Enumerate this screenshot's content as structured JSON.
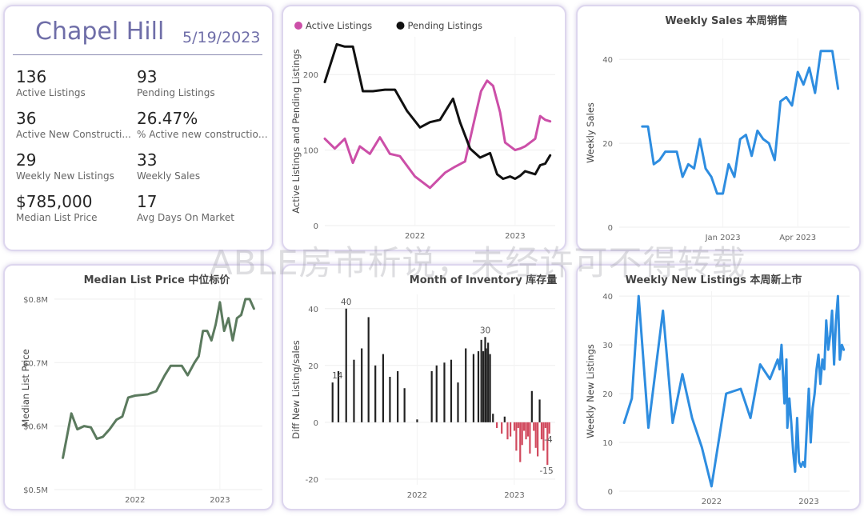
{
  "kpi_card": {
    "city": "Chapel Hill",
    "date": "5/19/2023",
    "items": [
      {
        "value": "136",
        "label": "Active Listings"
      },
      {
        "value": "93",
        "label": "Pending Listings"
      },
      {
        "value": "36",
        "label": "Active New Constructi..."
      },
      {
        "value": "26.47%",
        "label": "% Active new constructions"
      },
      {
        "value": "29",
        "label": "Weekly New Listings"
      },
      {
        "value": "33",
        "label": "Weekly Sales"
      },
      {
        "value": "$785,000",
        "label": "Median List Price"
      },
      {
        "value": "17",
        "label": "Avg Days On Market"
      }
    ]
  },
  "watermark": "ABLE房市析说，未经许可不得转载",
  "chart_data": [
    {
      "id": "listings",
      "type": "line",
      "title": "",
      "ylabel": "Active Listings and Pending Listings",
      "ylim": [
        0,
        250
      ],
      "yticks": [
        "0",
        "100",
        "200"
      ],
      "xticks": [
        {
          "label": "2022",
          "x": 2022.0
        },
        {
          "label": "2023",
          "x": 2023.0
        }
      ],
      "xlim": [
        2021.1,
        2023.4
      ],
      "legend": "top-left",
      "series": [
        {
          "name": "Active Listings",
          "color": "#cc4fa8",
          "x": [
            2021.1,
            2021.2,
            2021.3,
            2021.38,
            2021.45,
            2021.55,
            2021.65,
            2021.75,
            2021.85,
            2022.0,
            2022.15,
            2022.3,
            2022.4,
            2022.5,
            2022.58,
            2022.66,
            2022.72,
            2022.78,
            2022.85,
            2022.9,
            2022.95,
            2023.0,
            2023.05,
            2023.1,
            2023.15,
            2023.2,
            2023.25,
            2023.3,
            2023.35
          ],
          "values": [
            115,
            102,
            115,
            83,
            105,
            95,
            117,
            95,
            92,
            65,
            50,
            70,
            78,
            85,
            132,
            178,
            192,
            185,
            150,
            110,
            105,
            100,
            102,
            105,
            110,
            115,
            145,
            140,
            138
          ]
        },
        {
          "name": "Pending Listings",
          "color": "#111111",
          "x": [
            2021.1,
            2021.22,
            2021.3,
            2021.38,
            2021.48,
            2021.58,
            2021.7,
            2021.8,
            2021.92,
            2022.05,
            2022.15,
            2022.25,
            2022.38,
            2022.45,
            2022.55,
            2022.65,
            2022.75,
            2022.82,
            2022.88,
            2022.95,
            2023.0,
            2023.05,
            2023.1,
            2023.15,
            2023.2,
            2023.25,
            2023.3,
            2023.35
          ],
          "values": [
            190,
            240,
            237,
            237,
            178,
            178,
            180,
            180,
            152,
            130,
            137,
            140,
            168,
            137,
            102,
            90,
            96,
            68,
            62,
            65,
            62,
            66,
            72,
            70,
            68,
            80,
            82,
            93
          ]
        }
      ]
    },
    {
      "id": "weekly_sales",
      "type": "line",
      "title": "Weekly Sales 本周销售",
      "ylabel": "Weekly Sales",
      "ylim": [
        0,
        45
      ],
      "yticks": [
        "0",
        "20",
        "40"
      ],
      "xticks": [
        {
          "label": "Jan 2023",
          "x": 0
        },
        {
          "label": "Apr 2023",
          "x": 13
        }
      ],
      "series": [
        {
          "name": "",
          "color": "#2e8de0",
          "x": [
            -14,
            -13,
            -12,
            -11,
            -10,
            -9,
            -8,
            -7,
            -6,
            -5,
            -4,
            -3,
            -2,
            -1,
            0,
            1,
            2,
            3,
            4,
            5,
            6,
            7,
            8,
            9,
            10,
            11,
            12,
            13,
            14,
            15,
            16,
            17,
            18,
            19,
            20
          ],
          "values": [
            24,
            24,
            15,
            16,
            18,
            18,
            18,
            12,
            15,
            14,
            21,
            14,
            12,
            8,
            8,
            15,
            12,
            21,
            22,
            17,
            23,
            21,
            20,
            16,
            30,
            31,
            29,
            37,
            34,
            38,
            32,
            42,
            42,
            42,
            33
          ]
        }
      ]
    },
    {
      "id": "median_price",
      "type": "line",
      "title": "Median List Price  中位标价",
      "ylabel": "Median List Price",
      "ylim": [
        0.5,
        0.82
      ],
      "yticks": [
        "$0.5M",
        "$0.6M",
        "$0.7M",
        "$0.8M"
      ],
      "xticks": [
        {
          "label": "2022",
          "x": 2022.0
        },
        {
          "label": "2023",
          "x": 2023.0
        }
      ],
      "series": [
        {
          "name": "",
          "color": "#5b7a5e",
          "x": [
            2021.15,
            2021.25,
            2021.32,
            2021.4,
            2021.48,
            2021.55,
            2021.62,
            2021.7,
            2021.78,
            2021.85,
            2021.92,
            2022.0,
            2022.15,
            2022.25,
            2022.35,
            2022.42,
            2022.48,
            2022.55,
            2022.62,
            2022.7,
            2022.75,
            2022.8,
            2022.85,
            2022.9,
            2022.95,
            2023.0,
            2023.05,
            2023.1,
            2023.15,
            2023.2,
            2023.25,
            2023.3,
            2023.35,
            2023.4
          ],
          "values": [
            0.55,
            0.62,
            0.595,
            0.6,
            0.598,
            0.58,
            0.583,
            0.595,
            0.61,
            0.615,
            0.645,
            0.648,
            0.65,
            0.655,
            0.68,
            0.695,
            0.695,
            0.695,
            0.68,
            0.7,
            0.71,
            0.75,
            0.75,
            0.735,
            0.76,
            0.795,
            0.75,
            0.77,
            0.735,
            0.77,
            0.775,
            0.8,
            0.8,
            0.785
          ]
        }
      ]
    },
    {
      "id": "months_inventory",
      "type": "bar",
      "title": "Month of Inventory 库存量",
      "ylabel": "Diff New Listing/sales",
      "ylim": [
        -22,
        45
      ],
      "yticks": [
        "-20",
        "0",
        "20",
        "40"
      ],
      "xticks": [
        {
          "label": "2022",
          "x": 2022.0
        },
        {
          "label": "2023",
          "x": 2023.0
        }
      ],
      "annotations": [
        {
          "label": "40",
          "x": 2021.27,
          "y": 40
        },
        {
          "label": "14",
          "x": 2021.18,
          "y": 14
        },
        {
          "label": "30",
          "x": 2022.7,
          "y": 30
        },
        {
          "label": "-4",
          "x": 2023.35,
          "y": -4
        },
        {
          "label": "-15",
          "x": 2023.33,
          "y": -15
        }
      ],
      "x": [
        2021.13,
        2021.19,
        2021.27,
        2021.35,
        2021.43,
        2021.5,
        2021.57,
        2021.65,
        2021.72,
        2021.8,
        2021.87,
        2022.0,
        2022.15,
        2022.2,
        2022.28,
        2022.35,
        2022.42,
        2022.5,
        2022.58,
        2022.63,
        2022.66,
        2022.68,
        2022.7,
        2022.71,
        2022.73,
        2022.75,
        2022.78,
        2022.82,
        2022.87,
        2022.9,
        2022.93,
        2022.96,
        2023.0,
        2023.02,
        2023.04,
        2023.06,
        2023.08,
        2023.1,
        2023.12,
        2023.14,
        2023.16,
        2023.18,
        2023.2,
        2023.22,
        2023.24,
        2023.26,
        2023.28,
        2023.3,
        2023.32,
        2023.34,
        2023.36
      ],
      "values": [
        14,
        18,
        40,
        22,
        26,
        37,
        20,
        24,
        16,
        18,
        12,
        1,
        18,
        20,
        21,
        22,
        14,
        26,
        24,
        25,
        29,
        25,
        30,
        26,
        28,
        24,
        3,
        -2,
        -4,
        2,
        -6,
        -5,
        -3,
        -10,
        -2,
        -14,
        -8,
        -3,
        -6,
        -5,
        -11,
        11,
        -3,
        -9,
        -12,
        8,
        -6,
        -10,
        -2,
        -15,
        -4
      ]
    },
    {
      "id": "weekly_new_listings",
      "type": "line",
      "title": "Weekly New Listings  本周新上市",
      "ylabel": "Weekly New Listings",
      "ylim": [
        0,
        41
      ],
      "yticks": [
        "0",
        "10",
        "20",
        "30",
        "40"
      ],
      "xticks": [
        {
          "label": "2022",
          "x": 2022.0
        },
        {
          "label": "2023",
          "x": 2023.0
        }
      ],
      "series": [
        {
          "name": "",
          "color": "#2e8de0",
          "x": [
            2021.1,
            2021.18,
            2021.25,
            2021.35,
            2021.5,
            2021.6,
            2021.7,
            2021.8,
            2021.9,
            2022.0,
            2022.15,
            2022.3,
            2022.4,
            2022.5,
            2022.6,
            2022.68,
            2022.7,
            2022.72,
            2022.75,
            2022.77,
            2022.78,
            2022.8,
            2022.82,
            2022.84,
            2022.86,
            2022.88,
            2022.9,
            2022.92,
            2022.94,
            2022.96,
            2023.0,
            2023.02,
            2023.04,
            2023.06,
            2023.08,
            2023.1,
            2023.12,
            2023.14,
            2023.16,
            2023.18,
            2023.2,
            2023.22,
            2023.24,
            2023.26,
            2023.28,
            2023.3,
            2023.32,
            2023.34,
            2023.36
          ],
          "values": [
            14,
            19,
            40,
            13,
            37,
            14,
            24,
            15,
            9,
            1,
            20,
            21,
            15,
            26,
            23,
            27,
            25,
            30,
            18,
            27,
            13,
            19,
            14,
            8,
            4,
            15,
            6,
            5,
            6,
            5,
            21,
            10,
            17,
            20,
            25,
            28,
            22,
            27,
            25,
            35,
            29,
            32,
            37,
            26,
            35,
            40,
            27,
            30,
            29
          ]
        }
      ]
    }
  ]
}
